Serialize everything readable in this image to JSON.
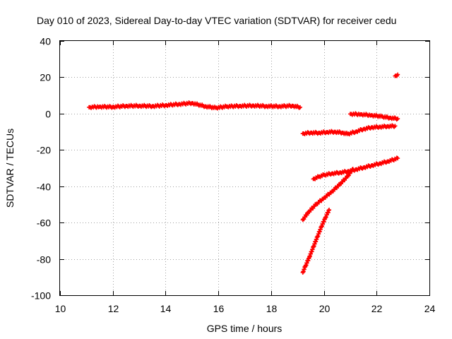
{
  "chart_data": {
    "type": "scatter",
    "title": "Day 010 of 2023, Sidereal Day-to-day VTEC variation (SDTVAR) for receiver cedu",
    "xlabel": "GPS time / hours",
    "ylabel": "SDTVAR / TECUs",
    "xlim": [
      10,
      24
    ],
    "ylim": [
      -100,
      40
    ],
    "x_ticks": [
      10,
      12,
      14,
      16,
      18,
      20,
      22,
      24
    ],
    "y_ticks": [
      -100,
      -80,
      -60,
      -40,
      -20,
      0,
      20,
      40
    ],
    "x_tick_labels": [
      "10",
      "12",
      "14",
      "16",
      "18",
      "20",
      "22",
      "24"
    ],
    "y_tick_labels": [
      "-100",
      "-80",
      "-60",
      "-40",
      "-20",
      "0",
      "20",
      "40"
    ],
    "grid": true,
    "marker": "+",
    "color": "#ff0000",
    "series": [
      {
        "x": [
          11.1,
          11.5,
          12.0,
          12.5,
          13.0,
          13.5,
          14.0,
          14.5,
          15.0,
          15.5,
          15.9,
          16.3,
          16.8,
          17.3,
          17.8,
          18.3,
          18.8,
          19.1
        ],
        "y": [
          3.5,
          3.8,
          3.7,
          4.2,
          4.3,
          4.1,
          4.6,
          5.2,
          5.8,
          4.0,
          3.2,
          3.9,
          4.2,
          4.4,
          4.1,
          4.0,
          4.3,
          3.5
        ]
      },
      {
        "x": [
          19.2,
          19.5,
          19.8,
          20.1,
          20.4,
          20.7,
          20.9,
          21.2,
          21.5,
          21.8,
          22.1,
          22.4,
          22.7
        ],
        "y": [
          -11.0,
          -10.5,
          -10.6,
          -10.2,
          -10.0,
          -10.5,
          -11.2,
          -10.0,
          -8.5,
          -7.6,
          -7.3,
          -7.0,
          -6.8
        ]
      },
      {
        "x": [
          21.0,
          21.4,
          21.8,
          22.2,
          22.5,
          22.8
        ],
        "y": [
          -0.2,
          -0.4,
          -0.9,
          -1.6,
          -2.3,
          -2.8
        ]
      },
      {
        "x": [
          22.7,
          22.8
        ],
        "y": [
          20.7,
          21.5
        ]
      },
      {
        "x": [
          19.6,
          19.8,
          20.0,
          20.3,
          20.6,
          20.9,
          21.2,
          21.5,
          21.8,
          22.1,
          22.4,
          22.8
        ],
        "y": [
          -36.0,
          -34.8,
          -33.8,
          -33.0,
          -32.5,
          -31.8,
          -30.8,
          -29.7,
          -28.6,
          -27.5,
          -26.4,
          -24.6
        ]
      },
      {
        "x": [
          19.2,
          19.4,
          19.7,
          20.0,
          20.3,
          20.6,
          20.9,
          21.1
        ],
        "y": [
          -58.5,
          -54.5,
          -50.0,
          -46.5,
          -43.0,
          -39.0,
          -34.5,
          -30.5
        ]
      },
      {
        "x": [
          19.2,
          19.3,
          19.45,
          19.6,
          19.75,
          19.9,
          20.05,
          20.2
        ],
        "y": [
          -87.5,
          -84.0,
          -79.0,
          -73.5,
          -68.0,
          -62.5,
          -57.5,
          -53.0
        ]
      }
    ]
  }
}
